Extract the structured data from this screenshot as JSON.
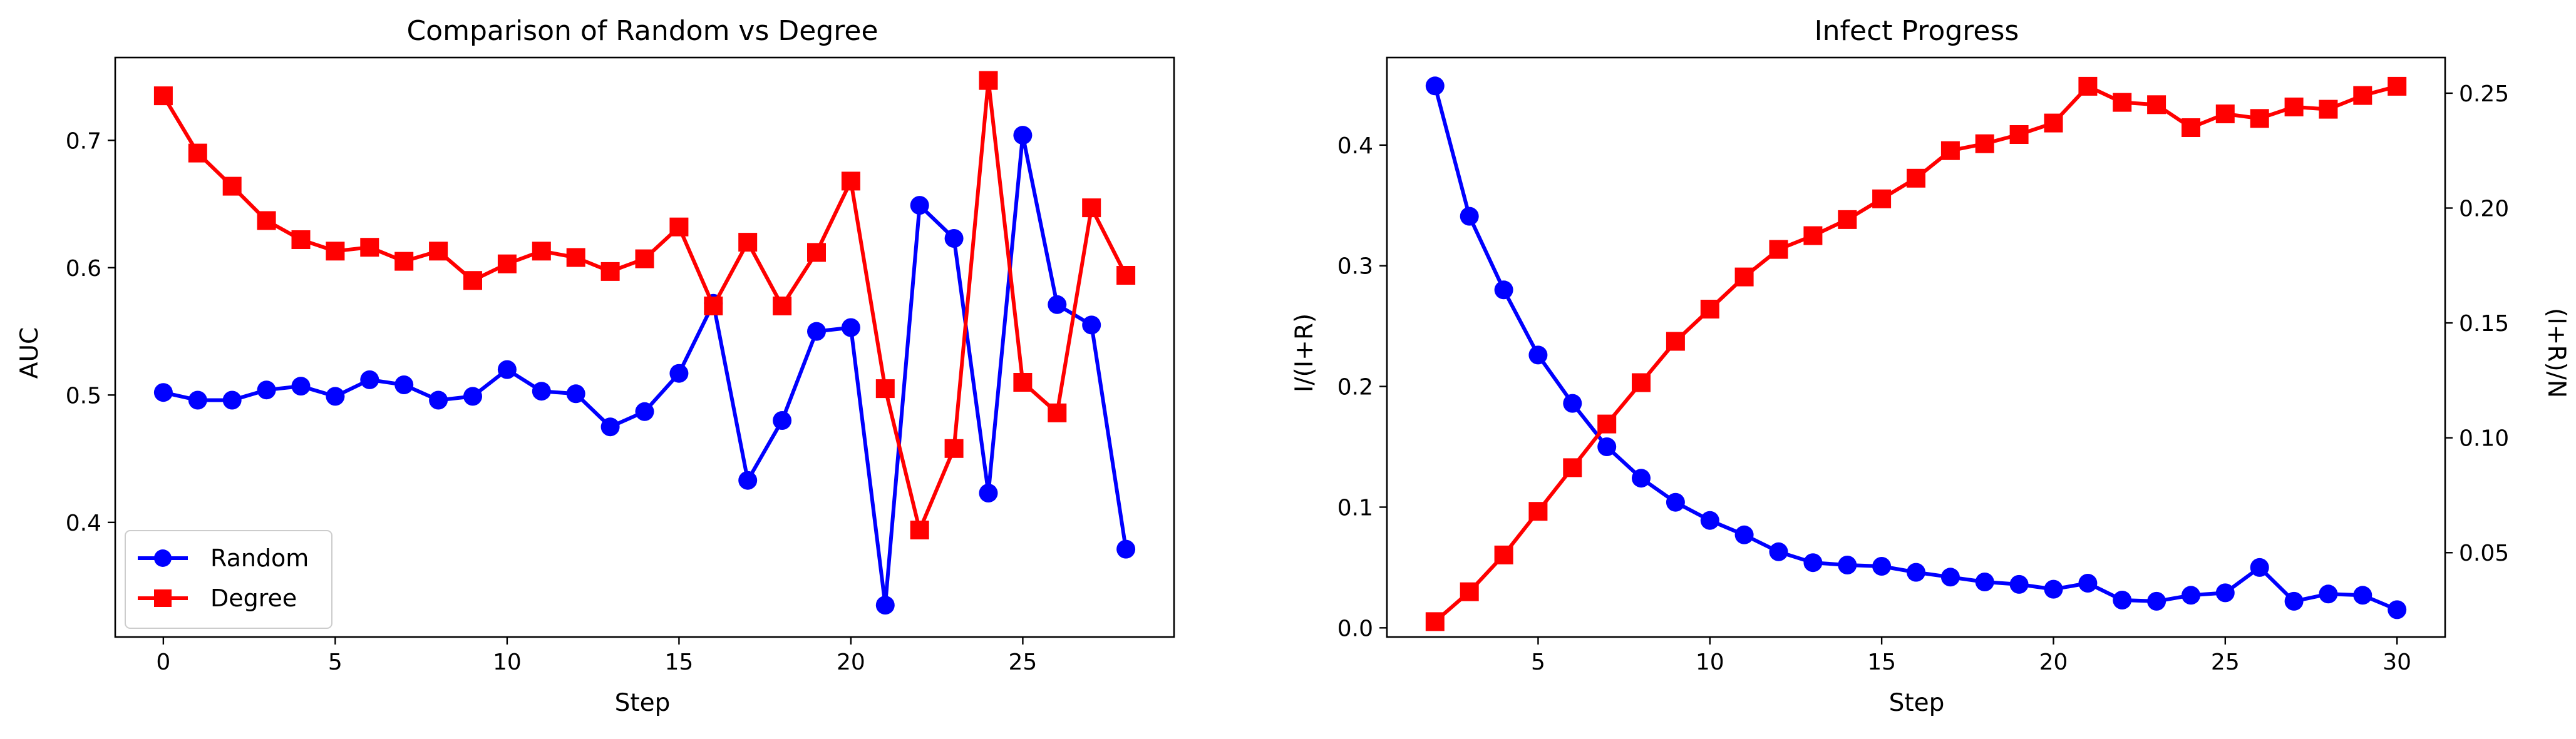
{
  "chart_data": [
    {
      "type": "line",
      "title": "Comparison of Random vs Degree",
      "xlabel": "Step",
      "ylabel": "AUC",
      "xlim": [
        -1.4,
        29.4
      ],
      "ylim": [
        0.31,
        0.765
      ],
      "xticks": [
        0,
        5,
        10,
        15,
        20,
        25
      ],
      "yticks": [
        0.4,
        0.5,
        0.6,
        0.7
      ],
      "grid": false,
      "legend": "lower-left",
      "x": [
        0,
        1,
        2,
        3,
        4,
        5,
        6,
        7,
        8,
        9,
        10,
        11,
        12,
        13,
        14,
        15,
        16,
        17,
        18,
        19,
        20,
        21,
        22,
        23,
        24,
        25,
        26,
        27,
        28
      ],
      "series": [
        {
          "name": "Random",
          "color": "#0000ff",
          "marker": "circle",
          "values": [
            0.502,
            0.496,
            0.496,
            0.504,
            0.507,
            0.499,
            0.512,
            0.508,
            0.496,
            0.499,
            0.52,
            0.503,
            0.501,
            0.475,
            0.487,
            0.517,
            0.572,
            0.433,
            0.48,
            0.55,
            0.553,
            0.335,
            0.649,
            0.623,
            0.423,
            0.704,
            0.571,
            0.555,
            0.379
          ]
        },
        {
          "name": "Degree",
          "color": "#ff0000",
          "marker": "square",
          "values": [
            0.735,
            0.69,
            0.664,
            0.637,
            0.622,
            0.613,
            0.616,
            0.605,
            0.613,
            0.59,
            0.603,
            0.613,
            0.608,
            0.597,
            0.607,
            0.632,
            0.57,
            0.62,
            0.57,
            0.612,
            0.668,
            0.505,
            0.394,
            0.458,
            0.747,
            0.51,
            0.486,
            0.647,
            0.594
          ]
        }
      ]
    },
    {
      "type": "line",
      "title": "Infect Progress",
      "xlabel": "Step",
      "xlim": [
        0.6,
        31.4
      ],
      "xticks": [
        5,
        10,
        15,
        20,
        25,
        30
      ],
      "grid": false,
      "x": [
        2,
        3,
        4,
        5,
        6,
        7,
        8,
        9,
        10,
        11,
        12,
        13,
        14,
        15,
        16,
        17,
        18,
        19,
        20,
        21,
        22,
        23,
        24,
        25,
        26,
        27,
        28,
        29,
        30
      ],
      "left_axis": {
        "label": "I/(I+R)",
        "color": "#0000ff",
        "ylim": [
          -0.0076,
          0.4725
        ],
        "ticks": [
          0.0,
          0.1,
          0.2,
          0.3,
          0.4
        ],
        "tick_labels": [
          "0.0",
          "0.1",
          "0.2",
          "0.3",
          "0.4"
        ]
      },
      "right_axis": {
        "label": "(I+R)/N",
        "color": "#ff0000",
        "ylim": [
          0.0133,
          0.2655
        ],
        "ticks": [
          0.05,
          0.1,
          0.15,
          0.2,
          0.25
        ],
        "tick_labels": [
          "0.05",
          "0.10",
          "0.15",
          "0.20",
          "0.25"
        ]
      },
      "series": [
        {
          "axis": "left",
          "color": "#0000ff",
          "marker": "circle",
          "values": [
            0.449,
            0.341,
            0.28,
            0.226,
            0.186,
            0.15,
            0.124,
            0.104,
            0.089,
            0.077,
            0.063,
            0.054,
            0.052,
            0.051,
            0.046,
            0.042,
            0.038,
            0.036,
            0.032,
            0.037,
            0.023,
            0.022,
            0.027,
            0.029,
            0.05,
            0.022,
            0.028,
            0.027,
            0.015
          ]
        },
        {
          "axis": "right",
          "color": "#ff0000",
          "marker": "square",
          "values": [
            0.02,
            0.033,
            0.049,
            0.068,
            0.087,
            0.106,
            0.124,
            0.142,
            0.156,
            0.17,
            0.182,
            0.188,
            0.195,
            0.204,
            0.213,
            0.225,
            0.228,
            0.232,
            0.237,
            0.253,
            0.246,
            0.245,
            0.235,
            0.241,
            0.239,
            0.244,
            0.243,
            0.249,
            0.253
          ]
        }
      ]
    }
  ]
}
